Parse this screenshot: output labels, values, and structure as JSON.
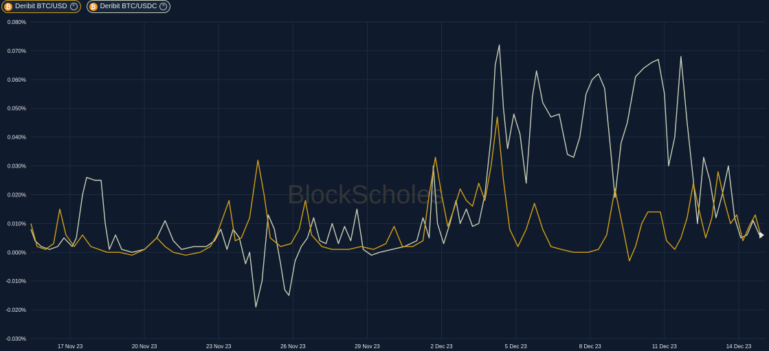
{
  "legend": {
    "items": [
      {
        "label": "Deribit BTC/USD",
        "color": "#d4a017",
        "icon": "bitcoin-icon",
        "coin_color": "#f7931a"
      },
      {
        "label": "Deribit BTC/USDC",
        "color": "#c9cfb8",
        "icon": "bitcoin-icon",
        "coin_color": "#f7931a"
      }
    ]
  },
  "watermark": "BlockScholes",
  "chart_data": {
    "type": "line",
    "title": "",
    "xlabel": "",
    "ylabel": "",
    "ylim": [
      -0.03,
      0.08
    ],
    "yticks": [
      "0.080%",
      "0.070%",
      "0.060%",
      "0.050%",
      "0.040%",
      "0.030%",
      "0.020%",
      "0.010%",
      "0.000%",
      "-0.010%",
      "-0.020%",
      "-0.030%"
    ],
    "ytick_values": [
      0.08,
      0.07,
      0.06,
      0.05,
      0.04,
      0.03,
      0.02,
      0.01,
      0.0,
      -0.01,
      -0.02,
      -0.03
    ],
    "xlim": [
      "2023-11-15T10:00",
      "2023-12-15T02:00"
    ],
    "xticks": [
      {
        "label": "17 Nov 23",
        "date": "2023-11-17"
      },
      {
        "label": "20 Nov 23",
        "date": "2023-11-20"
      },
      {
        "label": "23 Nov 23",
        "date": "2023-11-23"
      },
      {
        "label": "26 Nov 23",
        "date": "2023-11-26"
      },
      {
        "label": "29 Nov 23",
        "date": "2023-11-29"
      },
      {
        "label": "2 Dec 23",
        "date": "2023-12-02"
      },
      {
        "label": "5 Dec 23",
        "date": "2023-12-05"
      },
      {
        "label": "8 Dec 23",
        "date": "2023-12-08"
      },
      {
        "label": "11 Dec 23",
        "date": "2023-12-11"
      },
      {
        "label": "14 Dec 23",
        "date": "2023-12-14"
      }
    ],
    "grid": true,
    "legend_position": "top-left",
    "series": [
      {
        "name": "Deribit BTC/USDC",
        "color": "#c9cfb8",
        "points": [
          [
            "2023-11-15T10:00",
            0.008
          ],
          [
            "2023-11-15T14:00",
            0.004
          ],
          [
            "2023-11-15T20:00",
            0.002
          ],
          [
            "2023-11-16T04:00",
            0.001
          ],
          [
            "2023-11-16T12:00",
            0.002
          ],
          [
            "2023-11-16T18:00",
            0.005
          ],
          [
            "2023-11-17T02:00",
            0.002
          ],
          [
            "2023-11-17T06:00",
            0.005
          ],
          [
            "2023-11-17T12:00",
            0.02
          ],
          [
            "2023-11-17T16:00",
            0.026
          ],
          [
            "2023-11-18T00:00",
            0.025
          ],
          [
            "2023-11-18T06:00",
            0.025
          ],
          [
            "2023-11-18T10:00",
            0.01
          ],
          [
            "2023-11-18T14:00",
            0.001
          ],
          [
            "2023-11-18T20:00",
            0.006
          ],
          [
            "2023-11-19T02:00",
            0.001
          ],
          [
            "2023-11-19T12:00",
            0.0
          ],
          [
            "2023-11-20T00:00",
            0.001
          ],
          [
            "2023-11-20T12:00",
            0.005
          ],
          [
            "2023-11-20T20:00",
            0.011
          ],
          [
            "2023-11-21T04:00",
            0.004
          ],
          [
            "2023-11-21T12:00",
            0.001
          ],
          [
            "2023-11-22T00:00",
            0.002
          ],
          [
            "2023-11-22T12:00",
            0.002
          ],
          [
            "2023-11-22T20:00",
            0.004
          ],
          [
            "2023-11-23T02:00",
            0.008
          ],
          [
            "2023-11-23T08:00",
            0.001
          ],
          [
            "2023-11-23T14:00",
            0.008
          ],
          [
            "2023-11-23T20:00",
            0.005
          ],
          [
            "2023-11-24T02:00",
            -0.004
          ],
          [
            "2023-11-24T06:00",
            0.0
          ],
          [
            "2023-11-24T12:00",
            -0.019
          ],
          [
            "2023-11-24T18:00",
            -0.01
          ],
          [
            "2023-11-25T00:00",
            0.013
          ],
          [
            "2023-11-25T06:00",
            0.008
          ],
          [
            "2023-11-25T12:00",
            -0.004
          ],
          [
            "2023-11-25T16:00",
            -0.013
          ],
          [
            "2023-11-25T20:00",
            -0.015
          ],
          [
            "2023-11-26T02:00",
            -0.003
          ],
          [
            "2023-11-26T08:00",
            0.002
          ],
          [
            "2023-11-26T14:00",
            0.005
          ],
          [
            "2023-11-26T20:00",
            0.012
          ],
          [
            "2023-11-27T02:00",
            0.004
          ],
          [
            "2023-11-27T08:00",
            0.003
          ],
          [
            "2023-11-27T14:00",
            0.01
          ],
          [
            "2023-11-27T20:00",
            0.003
          ],
          [
            "2023-11-28T02:00",
            0.009
          ],
          [
            "2023-11-28T08:00",
            0.004
          ],
          [
            "2023-11-28T14:00",
            0.015
          ],
          [
            "2023-11-28T20:00",
            0.001
          ],
          [
            "2023-11-29T04:00",
            -0.001
          ],
          [
            "2023-11-29T12:00",
            0.0
          ],
          [
            "2023-11-30T00:00",
            0.001
          ],
          [
            "2023-11-30T12:00",
            0.002
          ],
          [
            "2023-12-01T00:00",
            0.004
          ],
          [
            "2023-12-01T06:00",
            0.012
          ],
          [
            "2023-12-01T12:00",
            0.005
          ],
          [
            "2023-12-01T16:00",
            0.03
          ],
          [
            "2023-12-01T20:00",
            0.01
          ],
          [
            "2023-12-02T02:00",
            0.003
          ],
          [
            "2023-12-02T08:00",
            0.01
          ],
          [
            "2023-12-02T14:00",
            0.018
          ],
          [
            "2023-12-02T18:00",
            0.01
          ],
          [
            "2023-12-03T00:00",
            0.015
          ],
          [
            "2023-12-03T06:00",
            0.009
          ],
          [
            "2023-12-03T12:00",
            0.01
          ],
          [
            "2023-12-03T18:00",
            0.02
          ],
          [
            "2023-12-04T00:00",
            0.04
          ],
          [
            "2023-12-04T04:00",
            0.065
          ],
          [
            "2023-12-04T08:00",
            0.072
          ],
          [
            "2023-12-04T12:00",
            0.05
          ],
          [
            "2023-12-04T16:00",
            0.036
          ],
          [
            "2023-12-04T22:00",
            0.048
          ],
          [
            "2023-12-05T04:00",
            0.041
          ],
          [
            "2023-12-05T10:00",
            0.024
          ],
          [
            "2023-12-05T16:00",
            0.054
          ],
          [
            "2023-12-05T20:00",
            0.063
          ],
          [
            "2023-12-06T02:00",
            0.052
          ],
          [
            "2023-12-06T10:00",
            0.047
          ],
          [
            "2023-12-06T18:00",
            0.048
          ],
          [
            "2023-12-07T02:00",
            0.034
          ],
          [
            "2023-12-07T08:00",
            0.033
          ],
          [
            "2023-12-07T14:00",
            0.04
          ],
          [
            "2023-12-07T20:00",
            0.055
          ],
          [
            "2023-12-08T02:00",
            0.06
          ],
          [
            "2023-12-08T08:00",
            0.062
          ],
          [
            "2023-12-08T14:00",
            0.057
          ],
          [
            "2023-12-08T20:00",
            0.035
          ],
          [
            "2023-12-09T00:00",
            0.019
          ],
          [
            "2023-12-09T06:00",
            0.038
          ],
          [
            "2023-12-09T12:00",
            0.045
          ],
          [
            "2023-12-09T20:00",
            0.061
          ],
          [
            "2023-12-10T04:00",
            0.064
          ],
          [
            "2023-12-10T12:00",
            0.066
          ],
          [
            "2023-12-10T18:00",
            0.067
          ],
          [
            "2023-12-11T00:00",
            0.055
          ],
          [
            "2023-12-11T04:00",
            0.03
          ],
          [
            "2023-12-11T10:00",
            0.04
          ],
          [
            "2023-12-11T16:00",
            0.068
          ],
          [
            "2023-12-11T22:00",
            0.045
          ],
          [
            "2023-12-12T04:00",
            0.025
          ],
          [
            "2023-12-12T08:00",
            0.01
          ],
          [
            "2023-12-12T14:00",
            0.033
          ],
          [
            "2023-12-12T20:00",
            0.025
          ],
          [
            "2023-12-13T02:00",
            0.012
          ],
          [
            "2023-12-13T08:00",
            0.02
          ],
          [
            "2023-12-13T14:00",
            0.03
          ],
          [
            "2023-12-13T20:00",
            0.012
          ],
          [
            "2023-12-14T02:00",
            0.005
          ],
          [
            "2023-12-14T08:00",
            0.006
          ],
          [
            "2023-12-14T14:00",
            0.011
          ],
          [
            "2023-12-14T20:00",
            0.006
          ]
        ]
      },
      {
        "name": "Deribit BTC/USD",
        "color": "#d4a017",
        "points": [
          [
            "2023-11-15T10:00",
            0.01
          ],
          [
            "2023-11-15T16:00",
            0.002
          ],
          [
            "2023-11-16T00:00",
            0.001
          ],
          [
            "2023-11-16T08:00",
            0.003
          ],
          [
            "2023-11-16T14:00",
            0.015
          ],
          [
            "2023-11-16T20:00",
            0.006
          ],
          [
            "2023-11-17T04:00",
            0.002
          ],
          [
            "2023-11-17T12:00",
            0.006
          ],
          [
            "2023-11-17T20:00",
            0.002
          ],
          [
            "2023-11-18T12:00",
            0.0
          ],
          [
            "2023-11-19T00:00",
            0.0
          ],
          [
            "2023-11-19T12:00",
            -0.001
          ],
          [
            "2023-11-20T00:00",
            0.001
          ],
          [
            "2023-11-20T12:00",
            0.005
          ],
          [
            "2023-11-20T20:00",
            0.002
          ],
          [
            "2023-11-21T04:00",
            0.0
          ],
          [
            "2023-11-21T16:00",
            -0.001
          ],
          [
            "2023-11-22T06:00",
            0.0
          ],
          [
            "2023-11-22T16:00",
            0.002
          ],
          [
            "2023-11-22T22:00",
            0.006
          ],
          [
            "2023-11-23T04:00",
            0.012
          ],
          [
            "2023-11-23T10:00",
            0.018
          ],
          [
            "2023-11-23T16:00",
            0.004
          ],
          [
            "2023-11-23T22:00",
            0.005
          ],
          [
            "2023-11-24T06:00",
            0.012
          ],
          [
            "2023-11-24T14:00",
            0.032
          ],
          [
            "2023-11-24T20:00",
            0.02
          ],
          [
            "2023-11-25T02:00",
            0.005
          ],
          [
            "2023-11-25T12:00",
            0.002
          ],
          [
            "2023-11-25T22:00",
            0.003
          ],
          [
            "2023-11-26T06:00",
            0.008
          ],
          [
            "2023-11-26T12:00",
            0.018
          ],
          [
            "2023-11-26T18:00",
            0.006
          ],
          [
            "2023-11-27T04:00",
            0.002
          ],
          [
            "2023-11-27T14:00",
            0.001
          ],
          [
            "2023-11-28T06:00",
            0.001
          ],
          [
            "2023-11-28T18:00",
            0.002
          ],
          [
            "2023-11-29T06:00",
            0.001
          ],
          [
            "2023-11-29T18:00",
            0.003
          ],
          [
            "2023-11-30T02:00",
            0.009
          ],
          [
            "2023-11-30T10:00",
            0.002
          ],
          [
            "2023-11-30T20:00",
            0.002
          ],
          [
            "2023-12-01T06:00",
            0.004
          ],
          [
            "2023-12-01T12:00",
            0.02
          ],
          [
            "2023-12-01T18:00",
            0.033
          ],
          [
            "2023-12-02T00:00",
            0.02
          ],
          [
            "2023-12-02T06:00",
            0.009
          ],
          [
            "2023-12-02T12:00",
            0.015
          ],
          [
            "2023-12-02T18:00",
            0.022
          ],
          [
            "2023-12-03T00:00",
            0.018
          ],
          [
            "2023-12-03T06:00",
            0.016
          ],
          [
            "2023-12-03T12:00",
            0.024
          ],
          [
            "2023-12-03T18:00",
            0.018
          ],
          [
            "2023-12-04T00:00",
            0.03
          ],
          [
            "2023-12-04T06:00",
            0.047
          ],
          [
            "2023-12-04T12:00",
            0.025
          ],
          [
            "2023-12-04T18:00",
            0.008
          ],
          [
            "2023-12-05T02:00",
            0.002
          ],
          [
            "2023-12-05T10:00",
            0.008
          ],
          [
            "2023-12-05T18:00",
            0.017
          ],
          [
            "2023-12-06T02:00",
            0.008
          ],
          [
            "2023-12-06T10:00",
            0.002
          ],
          [
            "2023-12-06T20:00",
            0.001
          ],
          [
            "2023-12-07T08:00",
            0.0
          ],
          [
            "2023-12-07T22:00",
            0.0
          ],
          [
            "2023-12-08T08:00",
            0.001
          ],
          [
            "2023-12-08T16:00",
            0.006
          ],
          [
            "2023-12-09T00:00",
            0.022
          ],
          [
            "2023-12-09T08:00",
            0.008
          ],
          [
            "2023-12-09T14:00",
            -0.003
          ],
          [
            "2023-12-09T20:00",
            0.002
          ],
          [
            "2023-12-10T02:00",
            0.01
          ],
          [
            "2023-12-10T08:00",
            0.014
          ],
          [
            "2023-12-10T20:00",
            0.014
          ],
          [
            "2023-12-11T02:00",
            0.004
          ],
          [
            "2023-12-11T10:00",
            0.001
          ],
          [
            "2023-12-11T16:00",
            0.005
          ],
          [
            "2023-12-11T22:00",
            0.012
          ],
          [
            "2023-12-12T04:00",
            0.024
          ],
          [
            "2023-12-12T10:00",
            0.014
          ],
          [
            "2023-12-12T16:00",
            0.005
          ],
          [
            "2023-12-12T22:00",
            0.012
          ],
          [
            "2023-12-13T04:00",
            0.028
          ],
          [
            "2023-12-13T10:00",
            0.018
          ],
          [
            "2023-12-13T16:00",
            0.01
          ],
          [
            "2023-12-13T22:00",
            0.013
          ],
          [
            "2023-12-14T04:00",
            0.004
          ],
          [
            "2023-12-14T10:00",
            0.009
          ],
          [
            "2023-12-14T16:00",
            0.013
          ],
          [
            "2023-12-14T22:00",
            0.005
          ]
        ]
      }
    ]
  }
}
